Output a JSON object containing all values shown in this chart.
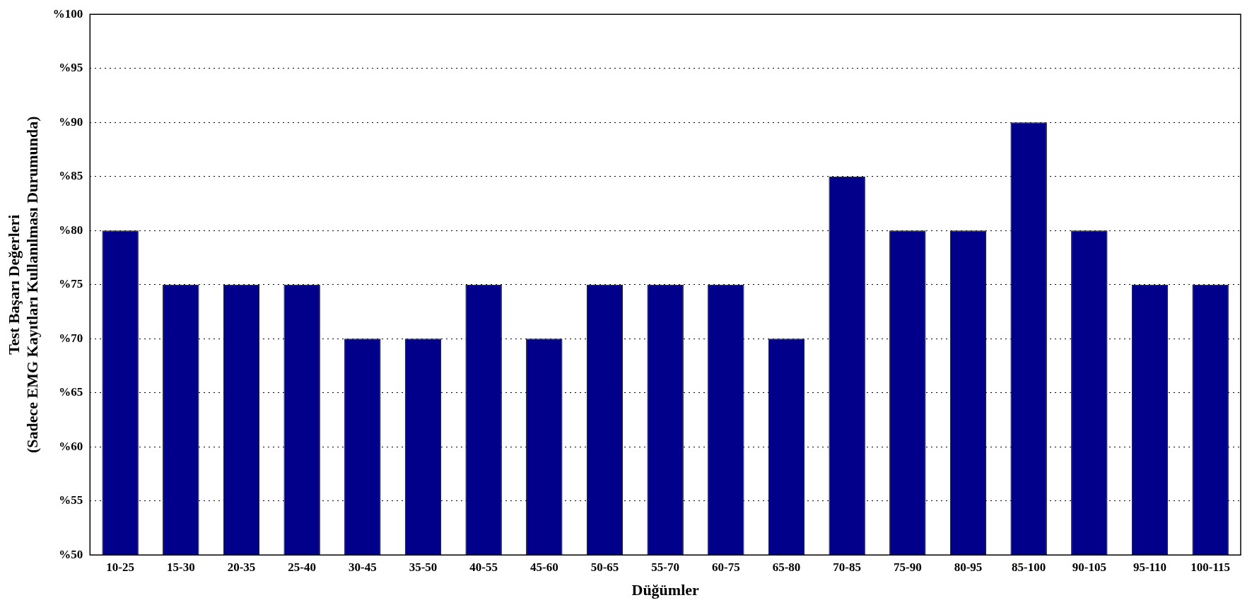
{
  "chart_data": {
    "type": "bar",
    "xlabel": "Düğümler",
    "ylabel": "Test Başarı Değerleri\n(Sadece EMG Kayıtları Kullanılması Durumunda)",
    "categories": [
      "10-25",
      "15-30",
      "20-35",
      "25-40",
      "30-45",
      "35-50",
      "40-55",
      "45-60",
      "50-65",
      "55-70",
      "60-75",
      "65-80",
      "70-85",
      "75-90",
      "80-95",
      "85-100",
      "90-105",
      "95-110",
      "100-115"
    ],
    "values": [
      80,
      75,
      75,
      75,
      70,
      70,
      75,
      70,
      75,
      75,
      75,
      70,
      85,
      80,
      80,
      90,
      80,
      75,
      75
    ],
    "color": "#00008b",
    "ylim": [
      50,
      100
    ],
    "yticks": [
      {
        "value": 50,
        "label": "%50"
      },
      {
        "value": 55,
        "label": "%55"
      },
      {
        "value": 60,
        "label": "%60"
      },
      {
        "value": 65,
        "label": "%65"
      },
      {
        "value": 70,
        "label": "%70"
      },
      {
        "value": 75,
        "label": "%75"
      },
      {
        "value": 80,
        "label": "%80"
      },
      {
        "value": 85,
        "label": "%85"
      },
      {
        "value": 90,
        "label": "%90"
      },
      {
        "value": 95,
        "label": "%95"
      },
      {
        "value": 100,
        "label": "%100"
      }
    ],
    "grid": "y",
    "legend": false
  }
}
